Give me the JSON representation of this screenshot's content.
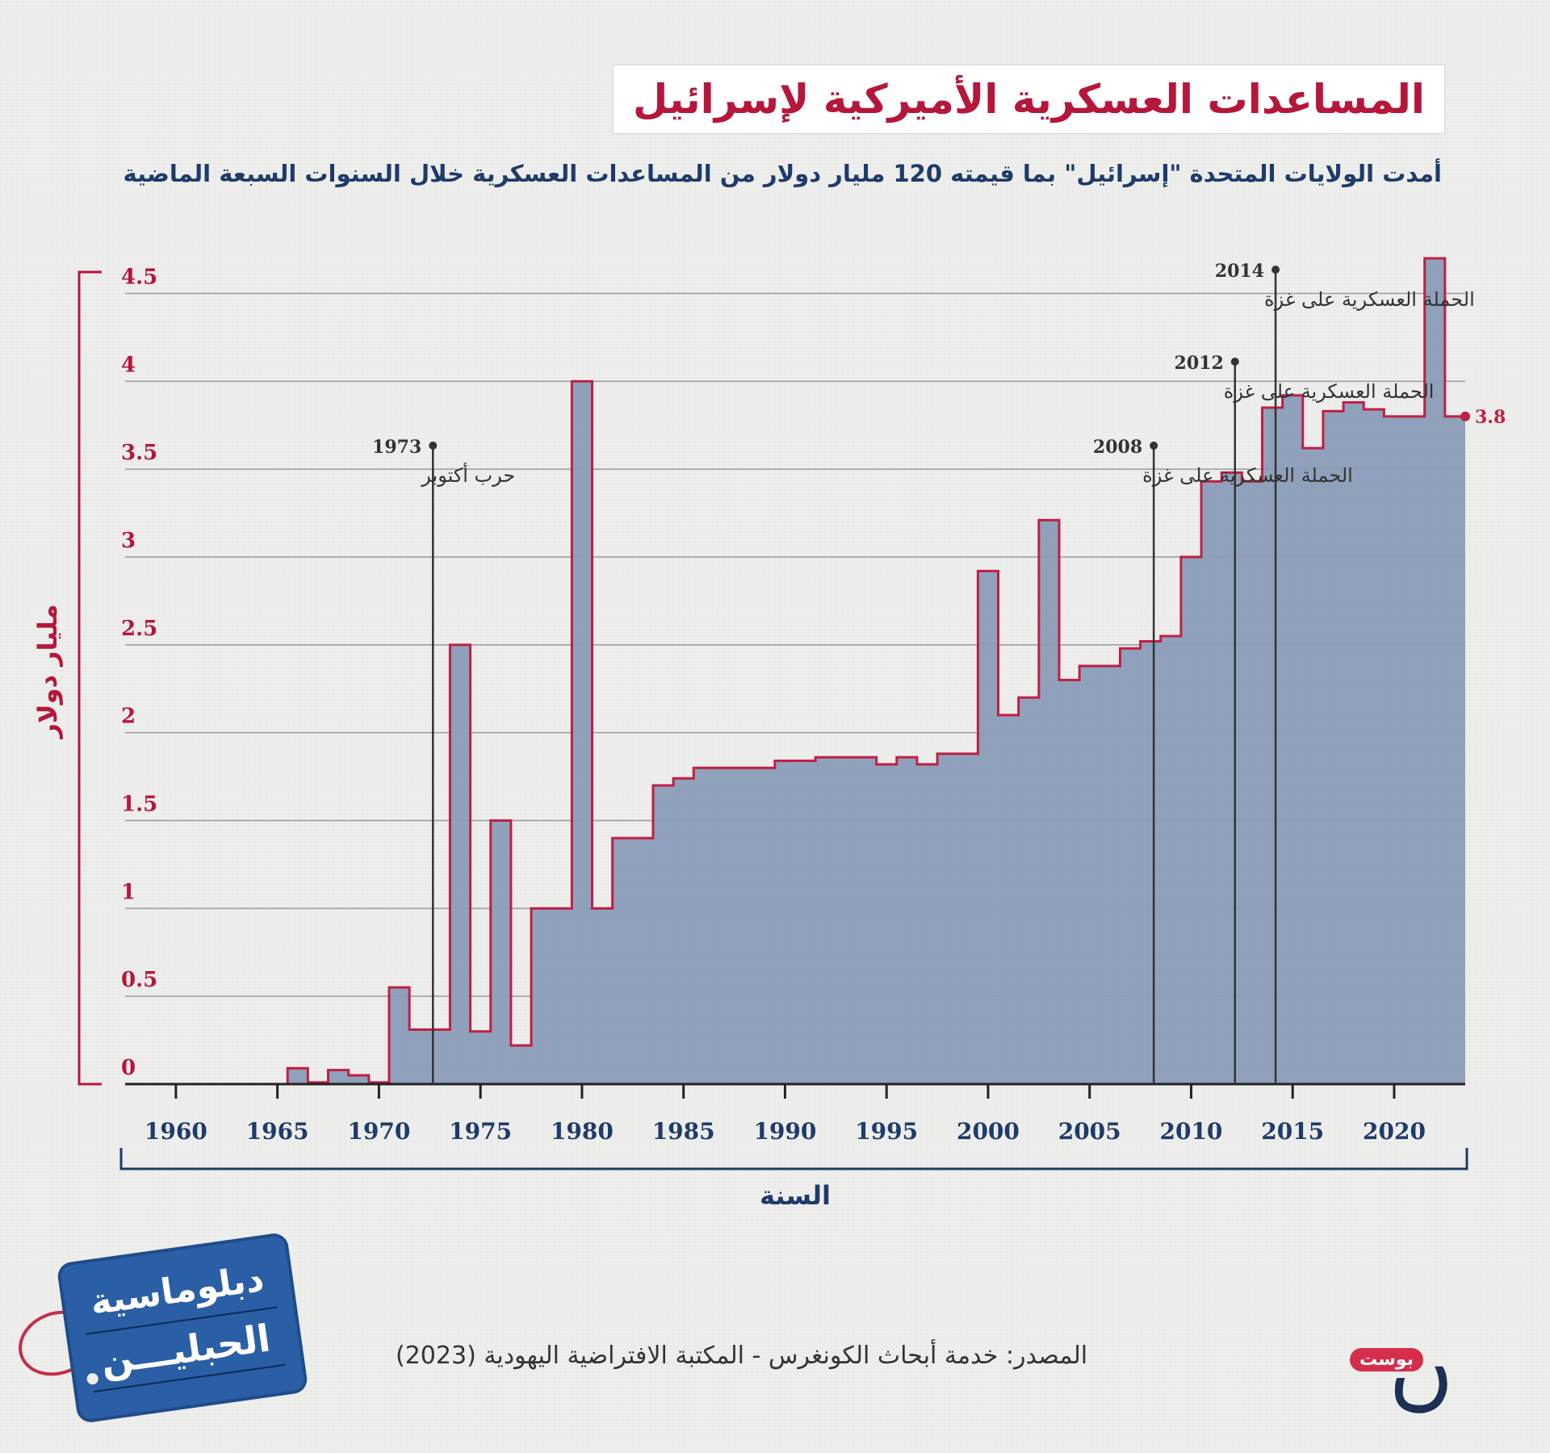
{
  "header": {
    "title": "المساعدات العسكرية الأميركية لإسرائيل",
    "subtitle": "أمدت الولايات المتحدة \"إسرائيل\" بما قيمته 120 مليار دولار من المساعدات العسكرية خلال السنوات السبعة الماضية"
  },
  "footer": {
    "source": "المصدر: خدمة أبحاث الكونغرس - المكتبة الافتراضية اليهودية (2023)",
    "brand_tag_line1": "دبلوماسية",
    "brand_tag_line2": "الحبليـــن",
    "logo_badge": "بوست"
  },
  "colors": {
    "accent": "#b5173b",
    "navy": "#1e3b6a",
    "area_fill": "#8a9cb8",
    "step_line": "#c01f45",
    "grid": "#9a9a9a"
  },
  "chart_data": {
    "type": "area",
    "step": true,
    "ylabel": "مليار دولار",
    "xlabel": "السنة",
    "ylim": [
      0,
      4.7
    ],
    "xlim": [
      1957.5,
      2023.5
    ],
    "y_ticks": [
      0,
      0.5,
      1,
      1.5,
      2,
      2.5,
      3,
      3.5,
      4,
      4.5
    ],
    "y_tick_labels": [
      "0",
      "0.5",
      "1",
      "1.5",
      "2",
      "2.5",
      "3",
      "3.5",
      "4",
      "4.5"
    ],
    "x_ticks": [
      1960,
      1965,
      1970,
      1975,
      1980,
      1985,
      1990,
      1995,
      2000,
      2005,
      2010,
      2015,
      2020
    ],
    "x_tick_labels": [
      "1960",
      "1965",
      "1970",
      "1975",
      "1980",
      "1985",
      "1990",
      "1995",
      "2000",
      "2005",
      "2010",
      "2015",
      "2020"
    ],
    "grid": true,
    "x": [
      1960,
      1961,
      1962,
      1963,
      1964,
      1965,
      1966,
      1967,
      1968,
      1969,
      1970,
      1971,
      1972,
      1973,
      1974,
      1975,
      1976,
      1977,
      1978,
      1979,
      1980,
      1981,
      1982,
      1983,
      1984,
      1985,
      1986,
      1987,
      1988,
      1989,
      1990,
      1991,
      1992,
      1993,
      1994,
      1995,
      1996,
      1997,
      1998,
      1999,
      2000,
      2001,
      2002,
      2003,
      2004,
      2005,
      2006,
      2007,
      2008,
      2009,
      2010,
      2011,
      2012,
      2013,
      2014,
      2015,
      2016,
      2017,
      2018,
      2019,
      2020,
      2021,
      2022,
      2023
    ],
    "values": [
      0,
      0,
      0,
      0,
      0,
      0,
      0.09,
      0.01,
      0.08,
      0.05,
      0.01,
      0.55,
      0.31,
      0.31,
      2.5,
      0.3,
      1.5,
      0.22,
      1.0,
      1.0,
      4.0,
      1.0,
      1.4,
      1.4,
      1.7,
      1.74,
      1.8,
      1.8,
      1.8,
      1.8,
      1.84,
      1.84,
      1.86,
      1.86,
      1.86,
      1.82,
      1.86,
      1.82,
      1.88,
      1.88,
      2.92,
      2.1,
      2.2,
      3.21,
      2.3,
      2.38,
      2.38,
      2.48,
      2.52,
      2.55,
      3.0,
      3.43,
      3.48,
      3.43,
      3.85,
      3.92,
      3.62,
      3.83,
      3.88,
      3.84,
      3.8,
      3.8,
      4.7,
      3.8
    ],
    "end_label": "3.8",
    "annotations": [
      {
        "year": "1973",
        "label": "حرب أكتوبر",
        "x": 1973
      },
      {
        "year": "2008",
        "label": "الحملة العسكرية على غزة",
        "x": 2008.5
      },
      {
        "year": "2012",
        "label": "الحملة العسكرية على غزة",
        "x": 2012.5
      },
      {
        "year": "2014",
        "label": "الحملة العسكرية على غزة",
        "x": 2014.5
      }
    ]
  }
}
